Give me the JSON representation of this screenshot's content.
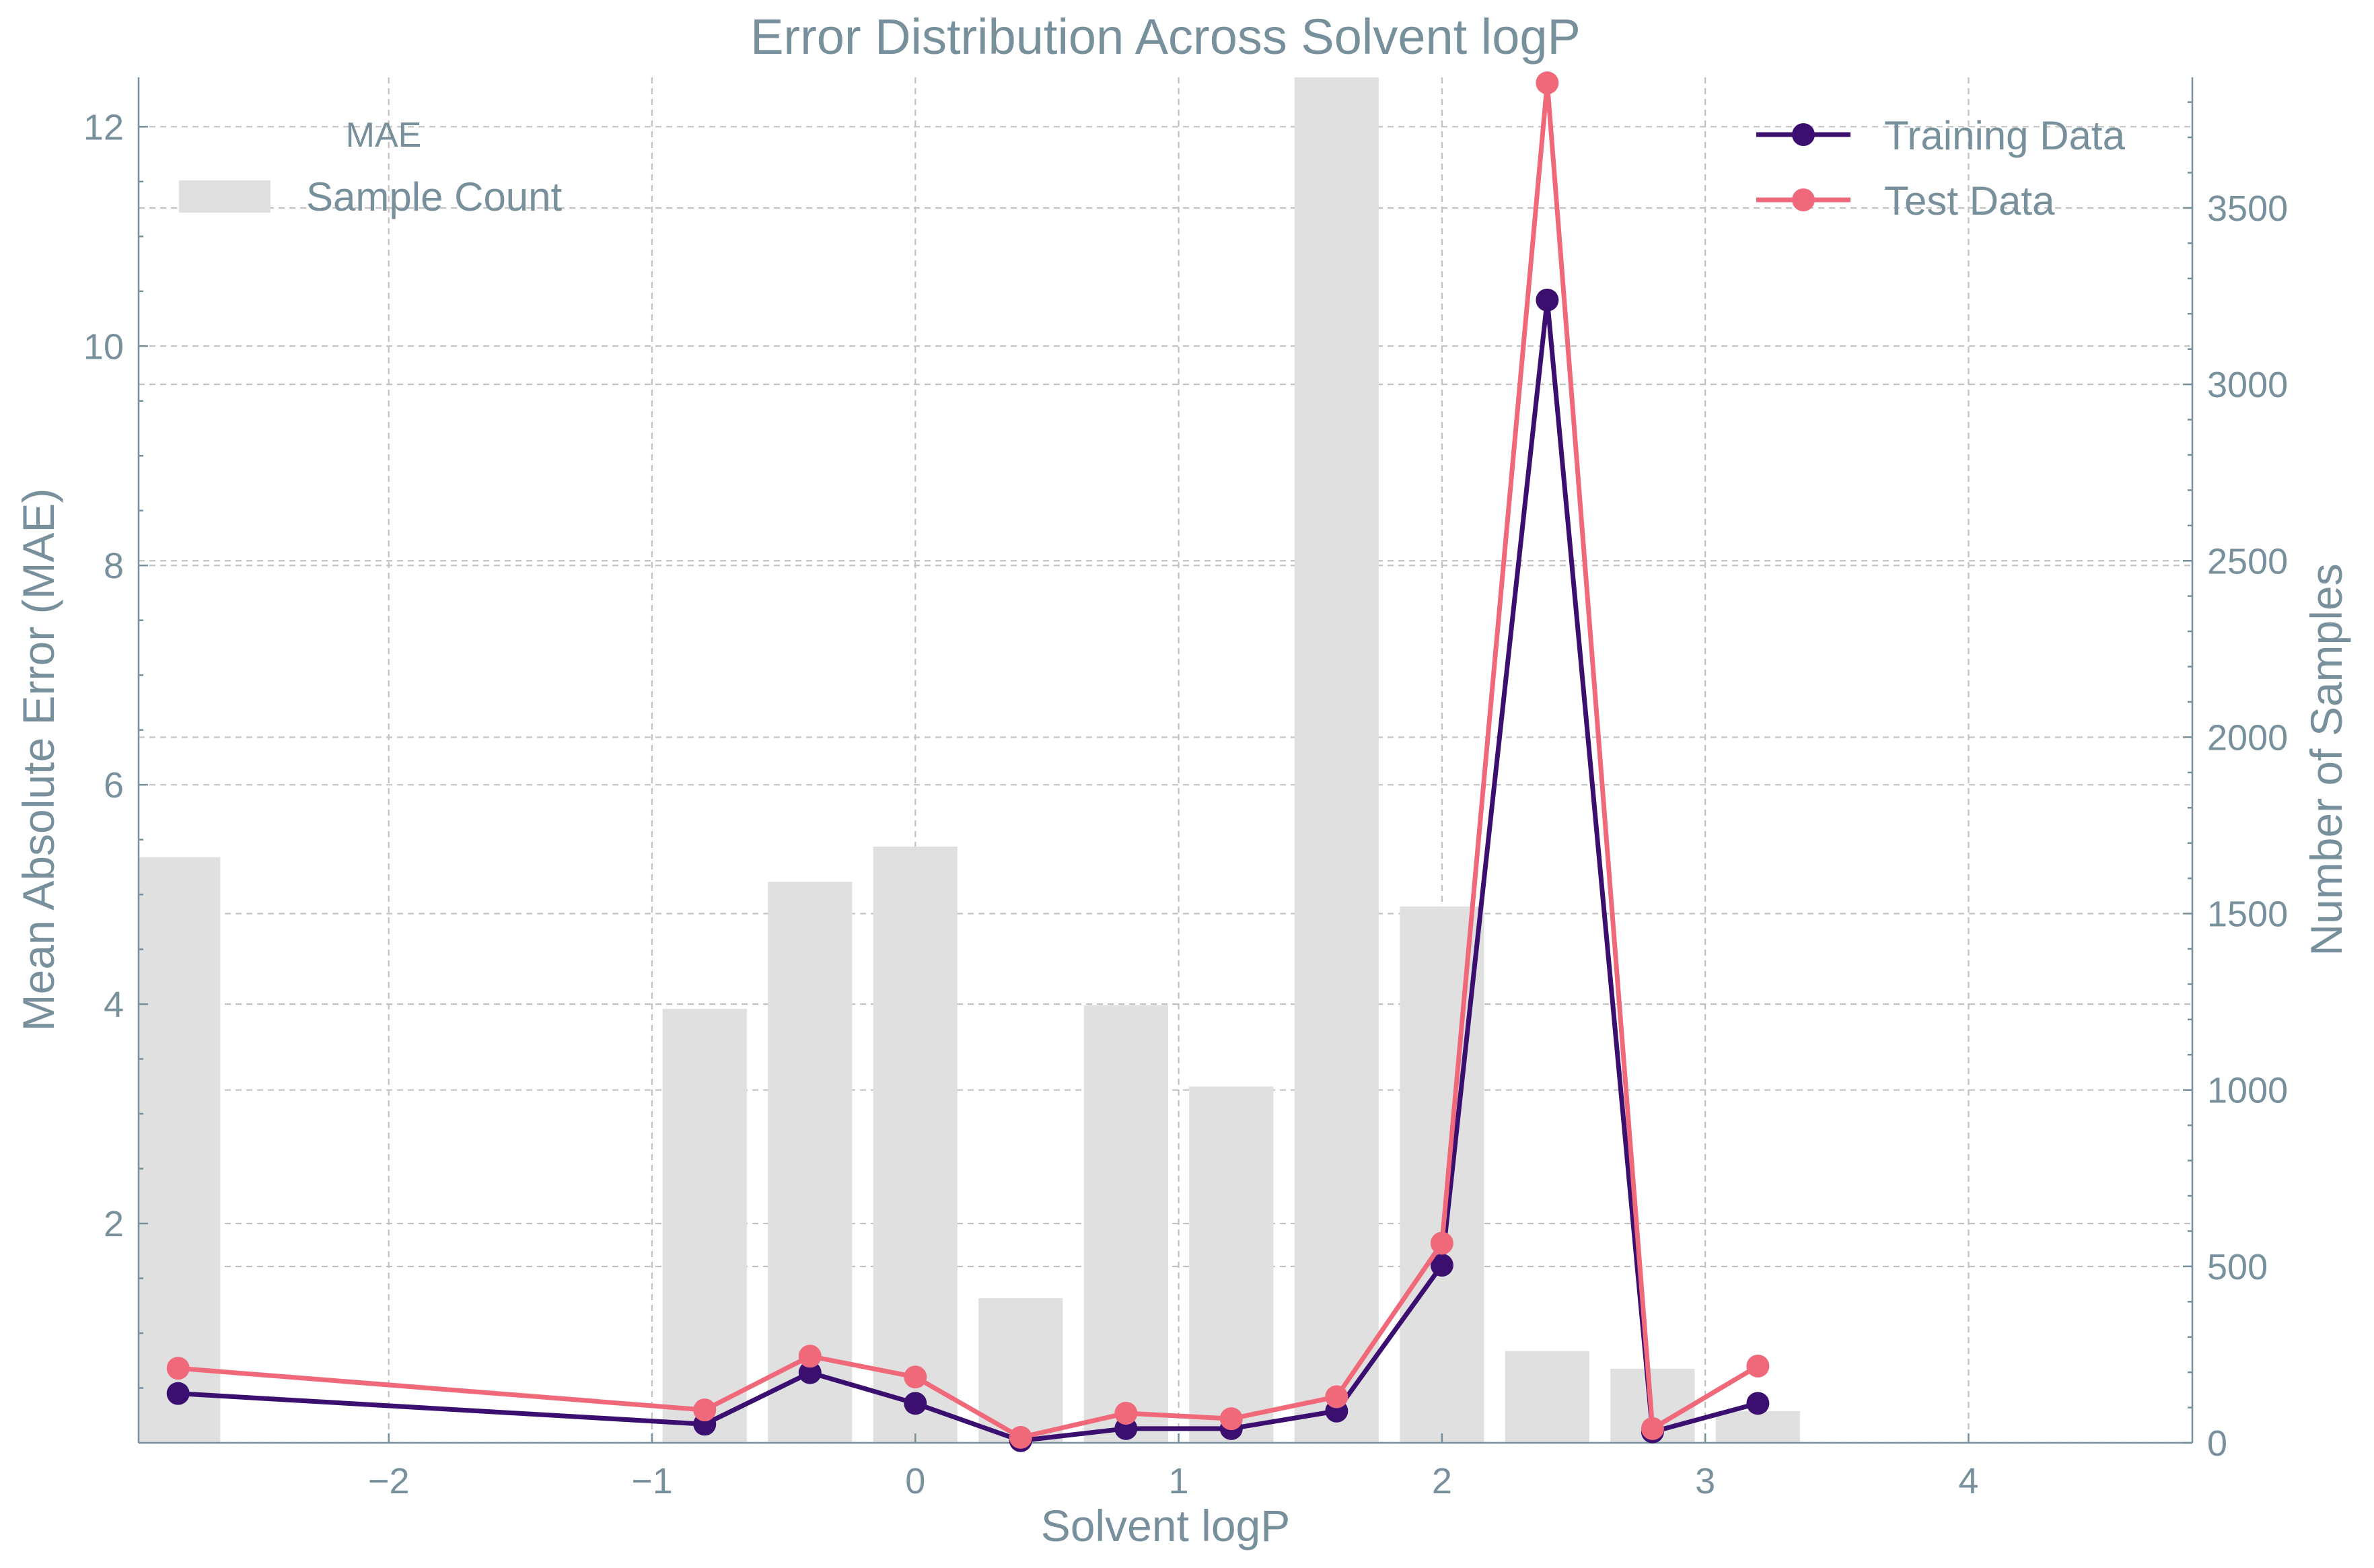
{
  "chart_data": {
    "type": "bar+line",
    "title": "Error Distribution Across Solvent logP",
    "xlabel": "Solvent logP",
    "ylabel_left": "Mean Absolute Error (MAE)",
    "ylabel_right": "Number of Samples",
    "xlim": [
      -2.95,
      4.85
    ],
    "ylim_left": [
      0,
      12.45
    ],
    "ylim_right": [
      0,
      3870
    ],
    "xticks": [
      -2,
      -1,
      0,
      1,
      2,
      3,
      4
    ],
    "xtick_labels": [
      "−2",
      "−1",
      "0",
      "1",
      "2",
      "3",
      "4"
    ],
    "yticks_left": [
      2,
      4,
      6,
      8,
      10,
      12
    ],
    "yticks_right": [
      0,
      500,
      1000,
      1500,
      2000,
      2500,
      3000,
      3500
    ],
    "grid": true,
    "bars": {
      "name": "Sample Count",
      "color": "#e0e0e0",
      "x": [
        -2.8,
        -0.8,
        -0.4,
        0.0,
        0.4,
        0.8,
        1.2,
        1.6,
        2.0,
        2.4,
        2.8,
        3.2
      ],
      "values": [
        1660,
        1230,
        1590,
        1690,
        410,
        1240,
        1010,
        3870,
        1520,
        260,
        210,
        90
      ]
    },
    "series": [
      {
        "name": "Training Data",
        "color": "#3b0f70",
        "x": [
          -2.8,
          -0.8,
          -0.4,
          0.0,
          0.4,
          0.8,
          1.2,
          1.6,
          2.0,
          2.4,
          2.8,
          3.2
        ],
        "values": [
          0.45,
          0.17,
          0.64,
          0.36,
          0.02,
          0.13,
          0.13,
          0.29,
          1.62,
          10.42,
          0.1,
          0.36
        ]
      },
      {
        "name": "Test Data",
        "color": "#f0697a",
        "x": [
          -2.8,
          -0.8,
          -0.4,
          0.0,
          0.4,
          0.8,
          1.2,
          1.6,
          2.0,
          2.4,
          2.8,
          3.2
        ],
        "values": [
          0.68,
          0.3,
          0.79,
          0.6,
          0.05,
          0.27,
          0.22,
          0.42,
          1.82,
          12.4,
          0.13,
          0.7
        ]
      }
    ],
    "legend_left": {
      "title": "MAE",
      "items": [
        "Sample Count"
      ],
      "position": "top-left"
    },
    "legend_right": {
      "items": [
        "Training Data",
        "Test Data"
      ],
      "position": "top-right"
    }
  }
}
